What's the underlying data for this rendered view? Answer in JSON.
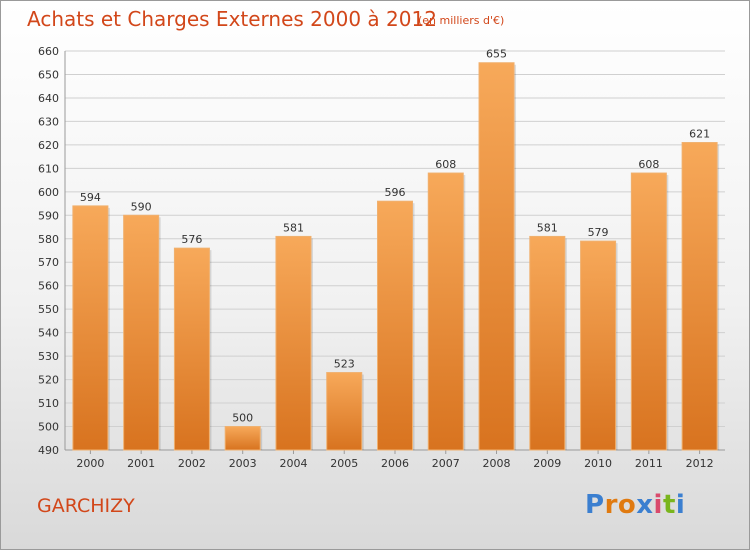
{
  "title": "Achats et Charges Externes 2000 à 2012",
  "subtitle": "(en milliers d'€)",
  "commune": "GARCHIZY",
  "logo": {
    "text": "Proxiti",
    "letter_colors": [
      "#3b7fd0",
      "#e07a10",
      "#e07a10",
      "#3b7fd0",
      "#d94a6c",
      "#7ab51d",
      "#3b7fd0"
    ]
  },
  "colors": {
    "title": "#d2471a",
    "bar_light": "#f7a95a",
    "bar_dark": "#d8731f",
    "grid": "#d0d0d0",
    "axis_text": "#333333"
  },
  "chart_data": {
    "type": "bar",
    "title": "Achats et Charges Externes 2000 à 2012",
    "categories": [
      "2000",
      "2001",
      "2002",
      "2003",
      "2004",
      "2005",
      "2006",
      "2007",
      "2008",
      "2009",
      "2010",
      "2011",
      "2012"
    ],
    "values": [
      594,
      590,
      576,
      500,
      581,
      523,
      596,
      608,
      655,
      581,
      579,
      608,
      621
    ],
    "ylim": [
      490,
      660
    ],
    "yticks": [
      490,
      500,
      510,
      520,
      530,
      540,
      550,
      560,
      570,
      580,
      590,
      600,
      610,
      620,
      630,
      640,
      650,
      660
    ],
    "grid": true
  }
}
